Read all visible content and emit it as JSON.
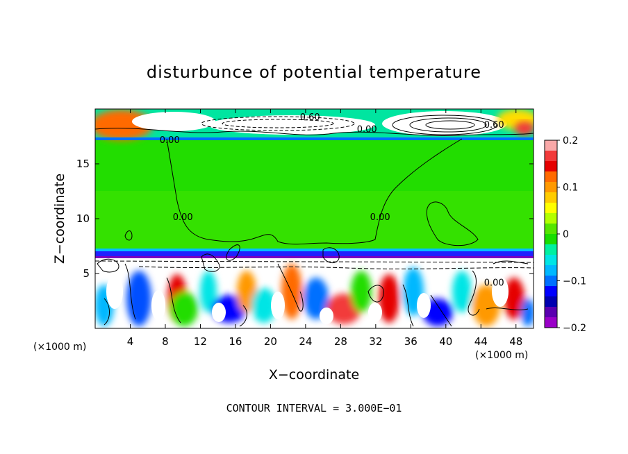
{
  "chart_data": {
    "type": "heatmap",
    "title": "disturbunce of potential temperature",
    "xlabel": "X−coordinate",
    "ylabel": "Z−coordinate",
    "x_unit_left": "(×1000 m)",
    "x_unit_right": "(×1000 m)",
    "x_ticks": [
      4,
      8,
      12,
      16,
      20,
      24,
      28,
      32,
      36,
      40,
      44,
      48
    ],
    "y_ticks": [
      5,
      10,
      15
    ],
    "xlim": [
      0,
      50
    ],
    "ylim": [
      0,
      20
    ],
    "colorbar": {
      "ticks": [
        {
          "value": 0.2,
          "label": "0.2"
        },
        {
          "value": 0.1,
          "label": "0.1"
        },
        {
          "value": 0,
          "label": "0"
        },
        {
          "value": -0.1,
          "label": "−0.1"
        },
        {
          "value": -0.2,
          "label": "−0.2"
        }
      ],
      "range": [
        -0.2,
        0.2
      ],
      "colors": [
        "#f9a8a8",
        "#f23a3a",
        "#e50000",
        "#ff6a00",
        "#ff9900",
        "#ffcc00",
        "#ffff00",
        "#b3ff00",
        "#55e600",
        "#19dd00",
        "#00f0a0",
        "#00e5e5",
        "#00b8ff",
        "#0070ff",
        "#0000ff",
        "#0000b0",
        "#5a00b0",
        "#9a00c8"
      ]
    },
    "contour_labels": [
      {
        "text": "0.60",
        "x": 24.5,
        "y": 19.3
      },
      {
        "text": "0.60",
        "x": 45.5,
        "y": 18.6
      },
      {
        "text": "0.00",
        "x": 31,
        "y": 18.2
      },
      {
        "text": "0.00",
        "x": 8.5,
        "y": 17.2
      },
      {
        "text": "0.00",
        "x": 10,
        "y": 10.2
      },
      {
        "text": "0.00",
        "x": 32.5,
        "y": 10.2
      },
      {
        "text": "0.00",
        "x": 45.5,
        "y": 4.2
      }
    ],
    "footer": "CONTOUR INTERVAL = 3.000E−01"
  }
}
